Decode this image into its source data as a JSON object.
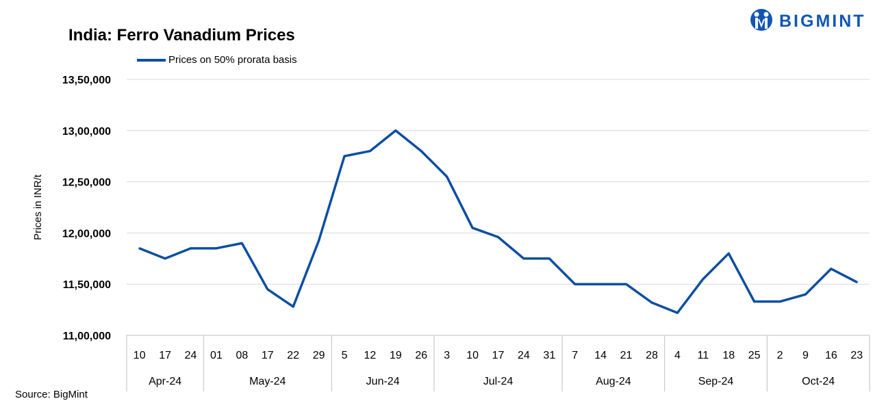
{
  "brand": {
    "name": "BIGMINT",
    "color": "#1155b5"
  },
  "source": "Source: BigMint",
  "chart_data": {
    "type": "line",
    "title": "India: Ferro Vanadium Prices",
    "ylabel": "Prices in INR/t",
    "xlabel": "",
    "ylim": [
      1100000,
      1350000
    ],
    "yticks": [
      "11,00,000",
      "11,50,000",
      "12,00,000",
      "12,50,000",
      "13,00,000",
      "13,50,000"
    ],
    "ytick_values": [
      1100000,
      1150000,
      1200000,
      1250000,
      1300000,
      1350000
    ],
    "grid": true,
    "legend_position": "top-left",
    "groups": [
      {
        "label": "Apr-24",
        "days": [
          "10",
          "17",
          "24"
        ]
      },
      {
        "label": "May-24",
        "days": [
          "01",
          "08",
          "17",
          "22",
          "29"
        ]
      },
      {
        "label": "Jun-24",
        "days": [
          "5",
          "12",
          "19",
          "26"
        ]
      },
      {
        "label": "Jul-24",
        "days": [
          "3",
          "10",
          "17",
          "24",
          "31"
        ]
      },
      {
        "label": "Aug-24",
        "days": [
          "7",
          "14",
          "21",
          "28"
        ]
      },
      {
        "label": "Sep-24",
        "days": [
          "4",
          "11",
          "18",
          "25"
        ]
      },
      {
        "label": "Oct-24",
        "days": [
          "2",
          "9",
          "16",
          "23"
        ]
      }
    ],
    "series": [
      {
        "name": "Prices on 50% prorata basis",
        "color": "#0a4ea2",
        "values": [
          1185000,
          1175000,
          1185000,
          1185000,
          1190000,
          1145000,
          1128000,
          1192500,
          1275000,
          1280000,
          1300000,
          1280000,
          1255000,
          1205000,
          1196000,
          1175000,
          1175000,
          1150000,
          1150000,
          1150000,
          1132000,
          1122000,
          1155000,
          1180000,
          1133000,
          1133000,
          1140000,
          1165000,
          1152000
        ]
      }
    ]
  }
}
